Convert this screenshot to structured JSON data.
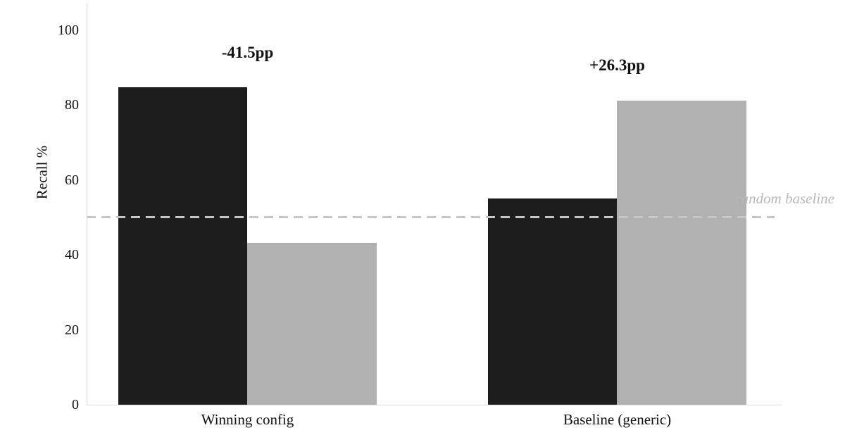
{
  "chart_data": {
    "type": "bar",
    "title": "",
    "xlabel": "",
    "ylabel": "Recall %",
    "ylim": [
      0,
      100
    ],
    "yticks": [
      0,
      20,
      40,
      60,
      80,
      100
    ],
    "categories": [
      "Winning config",
      "Baseline (generic)"
    ],
    "series": [
      {
        "name": "dark",
        "color": "#1d1d1d",
        "values": [
          84.8,
          55.0
        ]
      },
      {
        "name": "gray",
        "color": "#b1b1b1",
        "values": [
          43.3,
          81.3
        ]
      }
    ],
    "annotations": [
      "-41.5pp",
      "+26.3pp"
    ],
    "reference_line": {
      "value": 50,
      "label": "random baseline",
      "color": "#c6c6c6"
    },
    "grid": false,
    "legend": false
  },
  "colors": {
    "background": "#ffffff",
    "axis": "#d9d9d9",
    "annotation_text": "#111111",
    "tick_text": "#111111",
    "baseline_text": "#b9b9b9"
  }
}
